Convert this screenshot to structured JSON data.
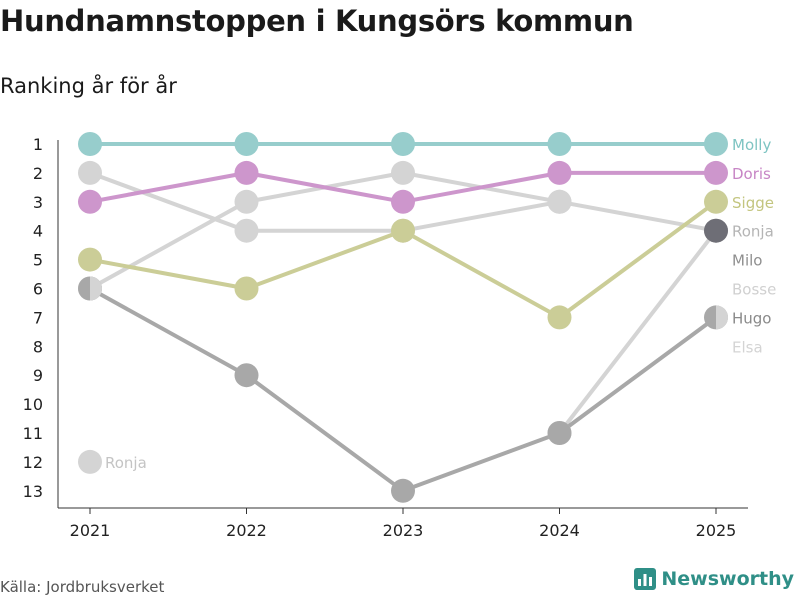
{
  "title": "Hundnamnstoppen i Kungsörs kommun",
  "subtitle": "Ranking år för år",
  "source": "Källa: Jordbruksverket",
  "brand": "Newsworthy",
  "colors": {
    "accent": "#2f8f87",
    "axis": "#333333"
  },
  "chart_data": {
    "type": "line",
    "title": "Hundnamnstoppen i Kungsörs kommun",
    "subtitle": "Ranking år för år",
    "x": [
      "2021",
      "2022",
      "2023",
      "2024",
      "2025"
    ],
    "y_ticks": [
      1,
      2,
      3,
      4,
      5,
      6,
      7,
      8,
      9,
      10,
      11,
      12,
      13
    ],
    "ylim": [
      1,
      13
    ],
    "y_inverted": true,
    "series": [
      {
        "name": "Elsa",
        "values": [
          null,
          null,
          null,
          null,
          null
        ],
        "color": "#e4e4e4",
        "label_rank": 8
      },
      {
        "name": "Bosse",
        "values": [
          null,
          null,
          null,
          null,
          null
        ],
        "color": "#dcdcdc",
        "label_rank": 6
      },
      {
        "name": "Ronja",
        "values": [
          12,
          null,
          null,
          null,
          null
        ],
        "color": "#d4d4d4",
        "label": "start"
      },
      {
        "name": "Milo",
        "values": [
          2,
          4,
          4,
          3,
          null
        ],
        "color": "#d4d4d4",
        "label_rank": 5
      },
      {
        "name": "Bosse",
        "values": [
          6,
          3,
          2,
          3,
          4
        ],
        "color": "#d4d4d4",
        "half_first": true
      },
      {
        "name": "Elsa",
        "values": [
          null,
          null,
          null,
          11,
          4
        ],
        "color": "#d4d4d4"
      },
      {
        "name": "Hugo",
        "values": [
          6,
          9,
          13,
          11,
          7
        ],
        "color": "#a8a8a8",
        "half_first": true,
        "half_last": true
      },
      {
        "name": "Ronja",
        "values": [
          null,
          null,
          null,
          null,
          4
        ],
        "color": "#6e6e76",
        "label_end": true,
        "label_rank": 4,
        "label_color": "#a8a8a8"
      },
      {
        "name": "Sigge",
        "values": [
          5,
          6,
          4,
          7,
          3
        ],
        "color": "#cbcd97"
      },
      {
        "name": "Doris",
        "values": [
          3,
          2,
          3,
          2,
          2
        ],
        "color": "#cd96cc"
      },
      {
        "name": "Molly",
        "values": [
          1,
          1,
          1,
          1,
          1
        ],
        "color": "#97cdcc"
      }
    ],
    "end_labels": [
      {
        "text": "Molly",
        "rank": 1,
        "color": "#7ec4c2"
      },
      {
        "text": "Doris",
        "rank": 2,
        "color": "#c785c5"
      },
      {
        "text": "Sigge",
        "rank": 3,
        "color": "#c3c57f"
      },
      {
        "text": "Ronja",
        "rank": 4,
        "color": "#b5b5b5"
      },
      {
        "text": "Milo",
        "rank": 5,
        "color": "#8f8f8f"
      },
      {
        "text": "Bosse",
        "rank": 6,
        "color": "#d0d0d0"
      },
      {
        "text": "Hugo",
        "rank": 7,
        "color": "#8a8a8a"
      },
      {
        "text": "Elsa",
        "rank": 8,
        "color": "#d4d4d4"
      }
    ],
    "start_labels": [
      {
        "text": "Ronja",
        "rank": 12,
        "color": "#c4c4c4"
      }
    ]
  }
}
